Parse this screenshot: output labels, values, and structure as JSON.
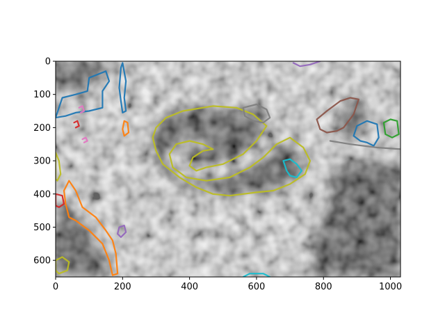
{
  "chart_data": {
    "type": "heatmap",
    "title": "",
    "xlabel": "",
    "ylabel": "",
    "xlim": [
      0,
      1030
    ],
    "ylim": [
      650,
      0
    ],
    "y_inverted": true,
    "colormap": "gray",
    "x_ticks": [
      0,
      200,
      400,
      600,
      800,
      1000
    ],
    "y_ticks": [
      0,
      100,
      200,
      300,
      400,
      500,
      600
    ],
    "x_tick_labels": [
      "0",
      "200",
      "400",
      "600",
      "800",
      "1000"
    ],
    "y_tick_labels": [
      "0",
      "100",
      "200",
      "300",
      "400",
      "500",
      "600"
    ],
    "grid": false,
    "contours": [
      {
        "color": "#bcbd22",
        "name": "",
        "points": [
          [
            470,
            135
          ],
          [
            540,
            140
          ],
          [
            590,
            160
          ],
          [
            630,
            195
          ],
          [
            600,
            240
          ],
          [
            560,
            280
          ],
          [
            500,
            310
          ],
          [
            450,
            320
          ],
          [
            420,
            330
          ],
          [
            400,
            315
          ],
          [
            410,
            290
          ],
          [
            440,
            270
          ],
          [
            470,
            265
          ],
          [
            440,
            250
          ],
          [
            400,
            240
          ],
          [
            360,
            250
          ],
          [
            340,
            280
          ],
          [
            350,
            320
          ],
          [
            390,
            350
          ],
          [
            450,
            360
          ],
          [
            520,
            350
          ],
          [
            580,
            320
          ],
          [
            620,
            290
          ],
          [
            660,
            250
          ],
          [
            700,
            230
          ],
          [
            740,
            260
          ],
          [
            760,
            300
          ],
          [
            745,
            340
          ],
          [
            700,
            370
          ],
          [
            650,
            390
          ],
          [
            600,
            395
          ],
          [
            560,
            400
          ],
          [
            520,
            405
          ],
          [
            470,
            400
          ],
          [
            420,
            380
          ],
          [
            370,
            350
          ],
          [
            320,
            310
          ],
          [
            300,
            270
          ],
          [
            290,
            230
          ],
          [
            300,
            200
          ],
          [
            330,
            170
          ],
          [
            380,
            150
          ]
        ]
      },
      {
        "color": "#bcbd22",
        "name": "",
        "points": [
          [
            0,
            275
          ],
          [
            10,
            300
          ],
          [
            15,
            340
          ],
          [
            5,
            360
          ],
          [
            0,
            355
          ]
        ]
      },
      {
        "color": "#bcbd22",
        "name": "",
        "points": [
          [
            0,
            600
          ],
          [
            20,
            590
          ],
          [
            40,
            605
          ],
          [
            35,
            630
          ],
          [
            10,
            640
          ],
          [
            0,
            630
          ]
        ]
      },
      {
        "color": "#1f77b4",
        "name": "",
        "points": [
          [
            0,
            170
          ],
          [
            20,
            110
          ],
          [
            60,
            100
          ],
          [
            95,
            90
          ],
          [
            100,
            50
          ],
          [
            150,
            30
          ],
          [
            160,
            60
          ],
          [
            140,
            90
          ],
          [
            140,
            140
          ],
          [
            100,
            150
          ],
          [
            60,
            155
          ],
          [
            30,
            165
          ]
        ]
      },
      {
        "color": "#1f77b4",
        "name": "",
        "points": [
          [
            200,
            5
          ],
          [
            210,
            60
          ],
          [
            205,
            110
          ],
          [
            210,
            150
          ],
          [
            200,
            155
          ],
          [
            195,
            120
          ],
          [
            190,
            80
          ],
          [
            195,
            20
          ]
        ]
      },
      {
        "color": "#1f77b4",
        "name": "",
        "points": [
          [
            900,
            195
          ],
          [
            930,
            180
          ],
          [
            960,
            190
          ],
          [
            965,
            230
          ],
          [
            950,
            255
          ],
          [
            930,
            245
          ],
          [
            910,
            240
          ],
          [
            890,
            225
          ]
        ]
      },
      {
        "color": "#ff7f0e",
        "name": "",
        "points": [
          [
            40,
            360
          ],
          [
            60,
            390
          ],
          [
            80,
            440
          ],
          [
            120,
            470
          ],
          [
            150,
            510
          ],
          [
            170,
            540
          ],
          [
            180,
            580
          ],
          [
            185,
            640
          ],
          [
            170,
            645
          ],
          [
            160,
            600
          ],
          [
            140,
            550
          ],
          [
            100,
            510
          ],
          [
            60,
            480
          ],
          [
            40,
            470
          ],
          [
            30,
            430
          ],
          [
            25,
            390
          ]
        ]
      },
      {
        "color": "#ff7f0e",
        "name": "",
        "points": [
          [
            205,
            180
          ],
          [
            215,
            185
          ],
          [
            218,
            215
          ],
          [
            205,
            225
          ],
          [
            200,
            205
          ]
        ]
      },
      {
        "color": "#d62728",
        "name": "",
        "points": [
          [
            0,
            400
          ],
          [
            20,
            405
          ],
          [
            25,
            430
          ],
          [
            10,
            440
          ],
          [
            0,
            435
          ]
        ]
      },
      {
        "color": "#d62728",
        "name": "",
        "points": [
          [
            55,
            185
          ],
          [
            65,
            180
          ],
          [
            70,
            195
          ],
          [
            60,
            200
          ]
        ]
      },
      {
        "color": "#8c564b",
        "name": "",
        "points": [
          [
            780,
            175
          ],
          [
            810,
            150
          ],
          [
            850,
            120
          ],
          [
            880,
            110
          ],
          [
            905,
            115
          ],
          [
            890,
            160
          ],
          [
            860,
            200
          ],
          [
            840,
            210
          ],
          [
            810,
            215
          ],
          [
            790,
            205
          ]
        ]
      },
      {
        "color": "#17becf",
        "name": "",
        "points": [
          [
            680,
            300
          ],
          [
            700,
            295
          ],
          [
            720,
            310
          ],
          [
            735,
            330
          ],
          [
            720,
            350
          ],
          [
            700,
            345
          ],
          [
            690,
            330
          ]
        ]
      },
      {
        "color": "#17becf",
        "name": "",
        "points": [
          [
            560,
            650
          ],
          [
            580,
            640
          ],
          [
            620,
            640
          ],
          [
            640,
            650
          ]
        ]
      },
      {
        "color": "#2ca02c",
        "name": "",
        "points": [
          [
            980,
            185
          ],
          [
            1000,
            175
          ],
          [
            1020,
            180
          ],
          [
            1025,
            220
          ],
          [
            1005,
            230
          ],
          [
            985,
            220
          ]
        ]
      },
      {
        "color": "#9467bd",
        "name": "",
        "points": [
          [
            190,
            500
          ],
          [
            205,
            495
          ],
          [
            210,
            515
          ],
          [
            195,
            530
          ],
          [
            185,
            520
          ]
        ]
      },
      {
        "color": "#9467bd",
        "name": "",
        "points": [
          [
            710,
            5
          ],
          [
            730,
            15
          ],
          [
            760,
            10
          ],
          [
            790,
            0
          ]
        ]
      },
      {
        "color": "#e377c2",
        "name": "",
        "points": [
          [
            70,
            140
          ],
          [
            80,
            135
          ],
          [
            85,
            150
          ],
          [
            75,
            155
          ]
        ]
      },
      {
        "color": "#e377c2",
        "name": "",
        "points": [
          [
            80,
            235
          ],
          [
            90,
            230
          ],
          [
            95,
            240
          ],
          [
            85,
            245
          ]
        ]
      },
      {
        "color": "#7f7f7f",
        "name": "",
        "points": [
          [
            560,
            140
          ],
          [
            600,
            130
          ],
          [
            630,
            145
          ],
          [
            640,
            170
          ],
          [
            620,
            185
          ],
          [
            590,
            180
          ],
          [
            565,
            165
          ]
        ]
      },
      {
        "color": "#7f7f7f",
        "name": "",
        "points": [
          [
            820,
            240
          ],
          [
            880,
            250
          ],
          [
            960,
            260
          ],
          [
            1030,
            265
          ]
        ]
      }
    ]
  }
}
